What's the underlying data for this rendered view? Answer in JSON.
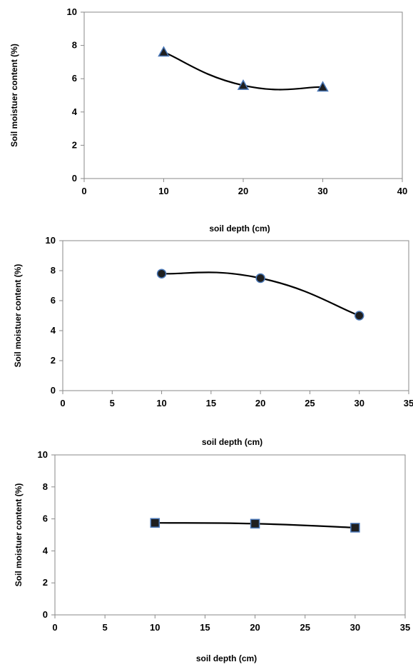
{
  "chart_data": [
    {
      "type": "scatter",
      "marker": "triangle",
      "marker_color": "#1f1f1f",
      "marker_edge": "#4a78b8",
      "line_style": "smooth",
      "x": [
        10,
        20,
        30
      ],
      "y": [
        7.6,
        5.6,
        5.5
      ],
      "xlim": [
        0,
        40
      ],
      "ylim": [
        0,
        10
      ],
      "xticks": [
        0,
        10,
        20,
        30,
        40
      ],
      "yticks": [
        0,
        2,
        4,
        6,
        8,
        10
      ],
      "xlabel": "soil depth (cm)",
      "ylabel": "Soil moistuer content (%)",
      "grid": false
    },
    {
      "type": "scatter",
      "marker": "circle",
      "marker_color": "#1f1f1f",
      "marker_edge": "#4a78b8",
      "line_style": "smooth",
      "x": [
        10,
        20,
        30
      ],
      "y": [
        7.8,
        7.5,
        5.0
      ],
      "xlim": [
        0,
        35
      ],
      "ylim": [
        0,
        10
      ],
      "xticks": [
        0,
        5,
        10,
        15,
        20,
        25,
        30,
        35
      ],
      "yticks": [
        0,
        2,
        4,
        6,
        8,
        10
      ],
      "xlabel": "soil depth (cm)",
      "ylabel": "Soil moistuer content (%)",
      "grid": false
    },
    {
      "type": "scatter",
      "marker": "square",
      "marker_color": "#1f1f1f",
      "marker_edge": "#4a78b8",
      "line_style": "smooth",
      "x": [
        10,
        20,
        30
      ],
      "y": [
        5.75,
        5.7,
        5.45
      ],
      "xlim": [
        0,
        35
      ],
      "ylim": [
        0,
        10
      ],
      "xticks": [
        0,
        5,
        10,
        15,
        20,
        25,
        30,
        35
      ],
      "yticks": [
        0,
        2,
        4,
        6,
        8,
        10
      ],
      "xlabel": "soil depth (cm)",
      "ylabel": "Soil moistuer content (%)",
      "grid": false
    }
  ]
}
